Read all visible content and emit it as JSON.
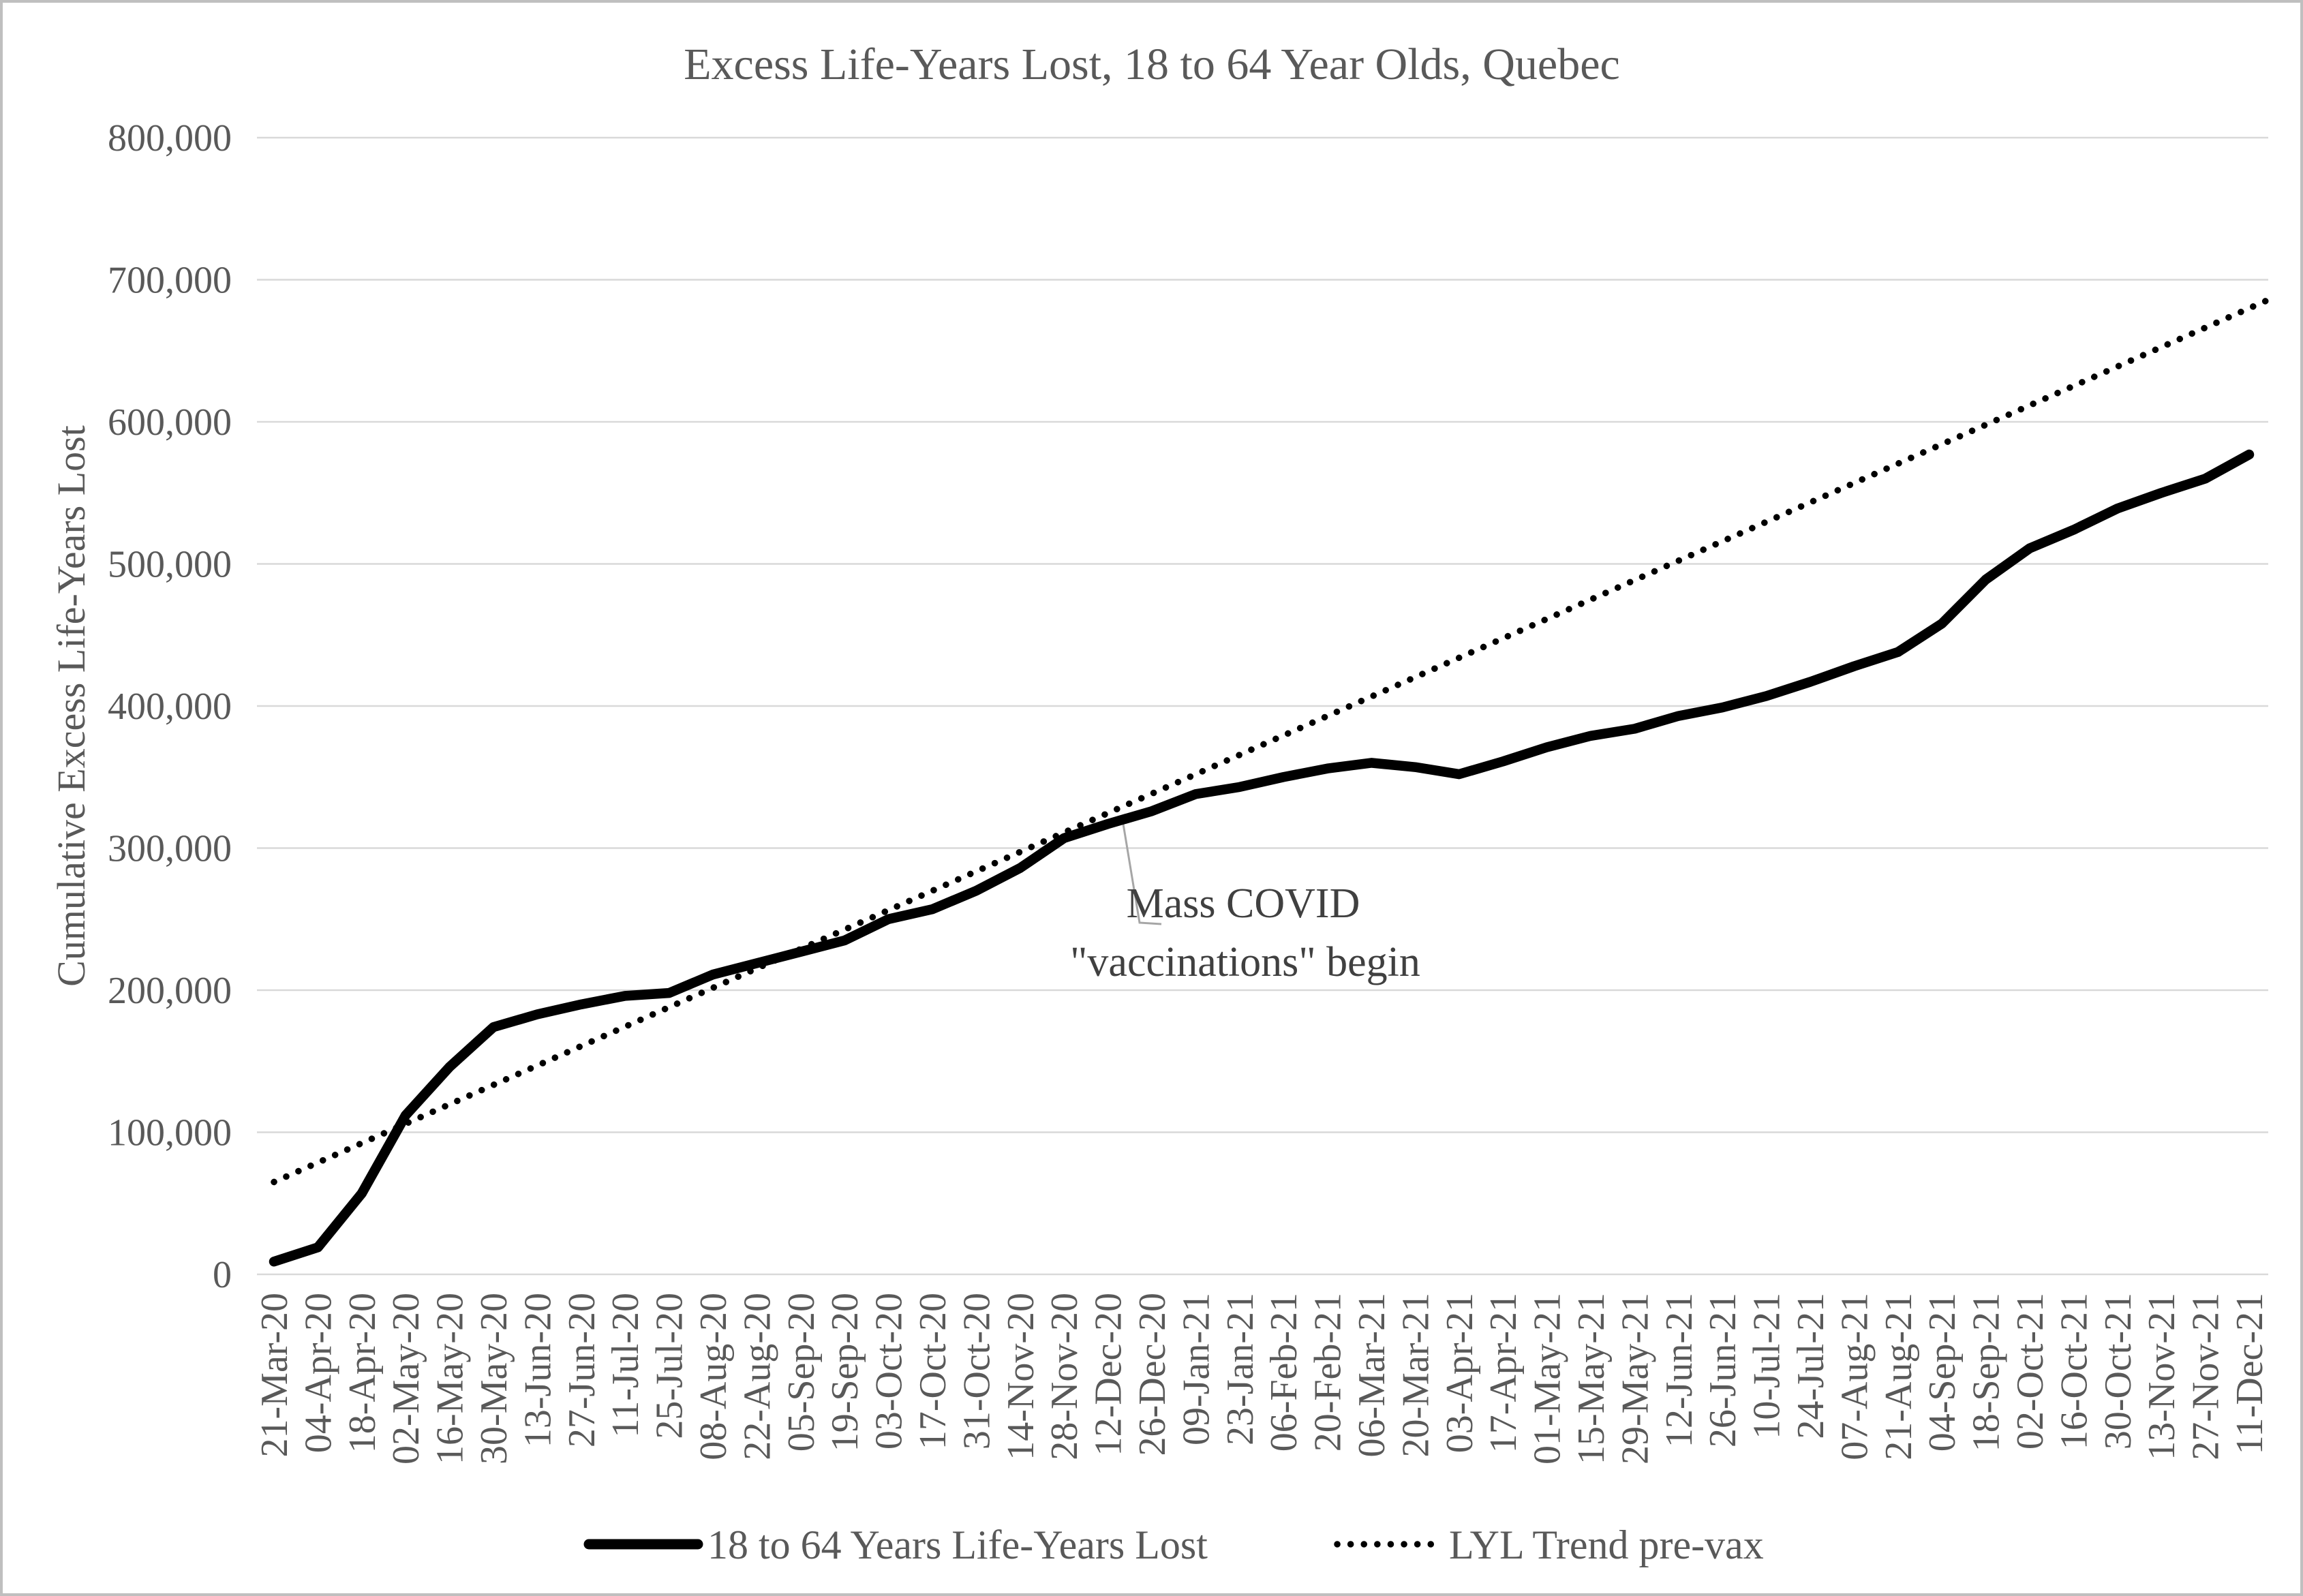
{
  "title": "Excess Life-Years Lost, 18 to 64 Year Olds, Quebec",
  "y_axis_title": "Cumulative Excess Life-Years Lost",
  "legend": {
    "series1": "18 to 64 Years Life-Years Lost",
    "series2": "LYL Trend pre-vax"
  },
  "annotation": {
    "line1": "Mass COVID",
    "line2": "\"vaccinations\" begin",
    "attached_to_date": "12-Dec-20"
  },
  "colors": {
    "text": "#595959",
    "gridline": "#d9d9d9",
    "series_line": "#000000",
    "trend_line": "#000000",
    "leader_line": "#a6a6a6",
    "border": "#bfbfbf"
  },
  "chart_data": {
    "type": "line",
    "title": "Excess Life-Years Lost, 18 to 64 Year Olds, Quebec",
    "xlabel": "",
    "ylabel": "Cumulative Excess Life-Years Lost",
    "ylim": [
      0,
      800000
    ],
    "ytick_step": 100000,
    "ytick_labels": [
      "0",
      "100,000",
      "200,000",
      "300,000",
      "400,000",
      "500,000",
      "600,000",
      "700,000",
      "800,000"
    ],
    "grid": "horizontal",
    "legend_position": "bottom",
    "x_tick_label_rotation": -90,
    "categories": [
      "21-Mar-20",
      "04-Apr-20",
      "18-Apr-20",
      "02-May-20",
      "16-May-20",
      "30-May-20",
      "13-Jun-20",
      "27-Jun-20",
      "11-Jul-20",
      "25-Jul-20",
      "08-Aug-20",
      "22-Aug-20",
      "05-Sep-20",
      "19-Sep-20",
      "03-Oct-20",
      "17-Oct-20",
      "31-Oct-20",
      "14-Nov-20",
      "28-Nov-20",
      "12-Dec-20",
      "26-Dec-20",
      "09-Jan-21",
      "23-Jan-21",
      "06-Feb-21",
      "20-Feb-21",
      "06-Mar-21",
      "20-Mar-21",
      "03-Apr-21",
      "17-Apr-21",
      "01-May-21",
      "15-May-21",
      "29-May-21",
      "12-Jun-21",
      "26-Jun-21",
      "10-Jul-21",
      "24-Jul-21",
      "07-Aug-21",
      "21-Aug-21",
      "04-Sep-21",
      "18-Sep-21",
      "02-Oct-21",
      "16-Oct-21",
      "30-Oct-21",
      "13-Nov-21",
      "27-Nov-21",
      "11-Dec-21"
    ],
    "series": [
      {
        "name": "18 to 64 Years Life-Years Lost",
        "style": "solid",
        "color": "#000000",
        "values": [
          9000,
          19000,
          57000,
          112000,
          146000,
          174000,
          183000,
          190000,
          196000,
          198000,
          211000,
          219000,
          227000,
          235000,
          250000,
          257000,
          270000,
          286000,
          307000,
          317000,
          326000,
          338000,
          343000,
          350000,
          356000,
          360000,
          357000,
          352000,
          361000,
          371000,
          379000,
          384000,
          393000,
          399000,
          407000,
          417000,
          428000,
          438000,
          458000,
          489000,
          511000,
          524000,
          539000,
          550000,
          560000,
          577000
        ]
      },
      {
        "name": "LYL Trend pre-vax",
        "style": "dotted",
        "color": "#000000",
        "shape": "linear",
        "start_value": 65000,
        "value_at_last_category": 680000,
        "end_value_at_plot_edge": 685000
      }
    ],
    "annotation": {
      "text": [
        "Mass COVID",
        "\"vaccinations\" begin"
      ],
      "points_to_category": "12-Dec-20",
      "points_to_value": 318000
    }
  }
}
